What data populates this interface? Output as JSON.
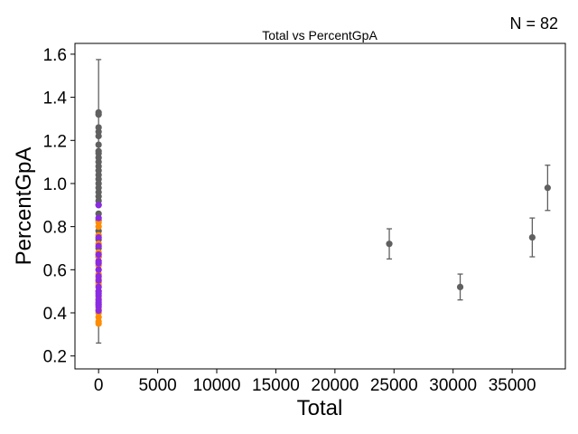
{
  "chart_data": {
    "type": "scatter",
    "title": "Total vs PercentGpA",
    "annotation": "N = 82",
    "xlabel": "Total",
    "ylabel": "PercentGpA",
    "xlim": [
      -2000,
      39500
    ],
    "ylim": [
      0.14,
      1.65
    ],
    "xticks": [
      0,
      5000,
      10000,
      15000,
      20000,
      25000,
      30000,
      35000
    ],
    "yticks": [
      0.2,
      0.4,
      0.6,
      0.8,
      1.0,
      1.2,
      1.4,
      1.6
    ],
    "grid": false,
    "colors": {
      "gray": "#606060",
      "orange": "#ff8c00",
      "purple": "#8a2be2",
      "errorbar": "#606060"
    },
    "series": [
      {
        "color": "gray",
        "points": [
          {
            "x": 24600,
            "y": 0.72,
            "yerr": 0.07
          },
          {
            "x": 30600,
            "y": 0.52,
            "yerr": 0.06
          },
          {
            "x": 36700,
            "y": 0.75,
            "yerr": 0.09
          },
          {
            "x": 38000,
            "y": 0.98,
            "yerr": 0.105
          },
          {
            "x": 0,
            "y": 1.33,
            "yerr": 0.245
          },
          {
            "x": 0,
            "y": 1.32
          },
          {
            "x": 0,
            "y": 1.26
          },
          {
            "x": 0,
            "y": 1.24
          },
          {
            "x": 0,
            "y": 1.22
          },
          {
            "x": 0,
            "y": 1.18
          },
          {
            "x": 0,
            "y": 1.15
          },
          {
            "x": 0,
            "y": 1.14
          },
          {
            "x": 0,
            "y": 1.12
          },
          {
            "x": 0,
            "y": 1.1
          },
          {
            "x": 0,
            "y": 1.08
          },
          {
            "x": 0,
            "y": 1.06
          },
          {
            "x": 0,
            "y": 1.04
          },
          {
            "x": 0,
            "y": 1.02
          },
          {
            "x": 0,
            "y": 1.0
          },
          {
            "x": 0,
            "y": 0.98
          },
          {
            "x": 0,
            "y": 0.96
          },
          {
            "x": 0,
            "y": 0.94
          },
          {
            "x": 0,
            "y": 0.92
          },
          {
            "x": 0,
            "y": 0.9
          },
          {
            "x": 0,
            "y": 0.86
          },
          {
            "x": 0,
            "y": 0.83
          },
          {
            "x": 0,
            "y": 0.78
          },
          {
            "x": 0,
            "y": 0.74
          },
          {
            "x": 0,
            "y": 0.7
          },
          {
            "x": 0,
            "y": 0.66
          }
        ]
      },
      {
        "color": "orange",
        "points": [
          {
            "x": 0,
            "y": 0.82
          },
          {
            "x": 0,
            "y": 0.8
          },
          {
            "x": 0,
            "y": 0.76
          },
          {
            "x": 0,
            "y": 0.72
          },
          {
            "x": 0,
            "y": 0.68
          },
          {
            "x": 0,
            "y": 0.66
          },
          {
            "x": 0,
            "y": 0.62
          },
          {
            "x": 0,
            "y": 0.58
          },
          {
            "x": 0,
            "y": 0.56
          },
          {
            "x": 0,
            "y": 0.54
          },
          {
            "x": 0,
            "y": 0.53
          },
          {
            "x": 0,
            "y": 0.5
          },
          {
            "x": 0,
            "y": 0.47
          },
          {
            "x": 0,
            "y": 0.44
          },
          {
            "x": 0,
            "y": 0.42
          },
          {
            "x": 0,
            "y": 0.4
          },
          {
            "x": 0,
            "y": 0.38
          },
          {
            "x": 0,
            "y": 0.36
          },
          {
            "x": 0,
            "y": 0.35,
            "yerr": 0.09
          }
        ]
      },
      {
        "color": "purple",
        "points": [
          {
            "x": 0,
            "y": 0.9
          },
          {
            "x": 0,
            "y": 0.84
          },
          {
            "x": 0,
            "y": 0.75
          },
          {
            "x": 0,
            "y": 0.71
          },
          {
            "x": 0,
            "y": 0.67
          },
          {
            "x": 0,
            "y": 0.64
          },
          {
            "x": 0,
            "y": 0.63
          },
          {
            "x": 0,
            "y": 0.6
          },
          {
            "x": 0,
            "y": 0.57
          },
          {
            "x": 0,
            "y": 0.55
          },
          {
            "x": 0,
            "y": 0.52
          },
          {
            "x": 0,
            "y": 0.5
          },
          {
            "x": 0,
            "y": 0.49
          },
          {
            "x": 0,
            "y": 0.48
          },
          {
            "x": 0,
            "y": 0.46
          },
          {
            "x": 0,
            "y": 0.45
          },
          {
            "x": 0,
            "y": 0.44
          },
          {
            "x": 0,
            "y": 0.43
          },
          {
            "x": 0,
            "y": 0.41
          }
        ]
      }
    ]
  }
}
